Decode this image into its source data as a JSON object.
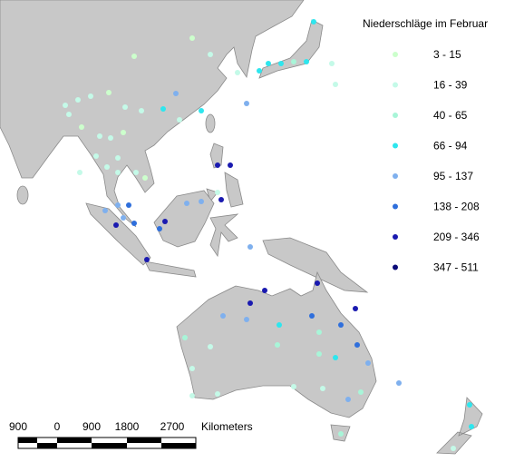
{
  "legend": {
    "title": "Niederschläge im Februar",
    "classes": [
      {
        "label": "3 - 15",
        "color": "#ccffcc"
      },
      {
        "label": "16 - 39",
        "color": "#c4fae8"
      },
      {
        "label": "40 - 65",
        "color": "#a8f5d8"
      },
      {
        "label": "66 - 94",
        "color": "#2ee6ee"
      },
      {
        "label": "95 - 137",
        "color": "#7fb0ee"
      },
      {
        "label": "138 - 208",
        "color": "#2f6fdc"
      },
      {
        "label": "209 - 346",
        "color": "#1a1ab0"
      },
      {
        "label": "347 - 511",
        "color": "#0b0b78"
      }
    ]
  },
  "scale_bar": {
    "labels": [
      "900",
      "0",
      "900",
      "1800",
      "2700"
    ],
    "unit": "Kilometers"
  }
}
